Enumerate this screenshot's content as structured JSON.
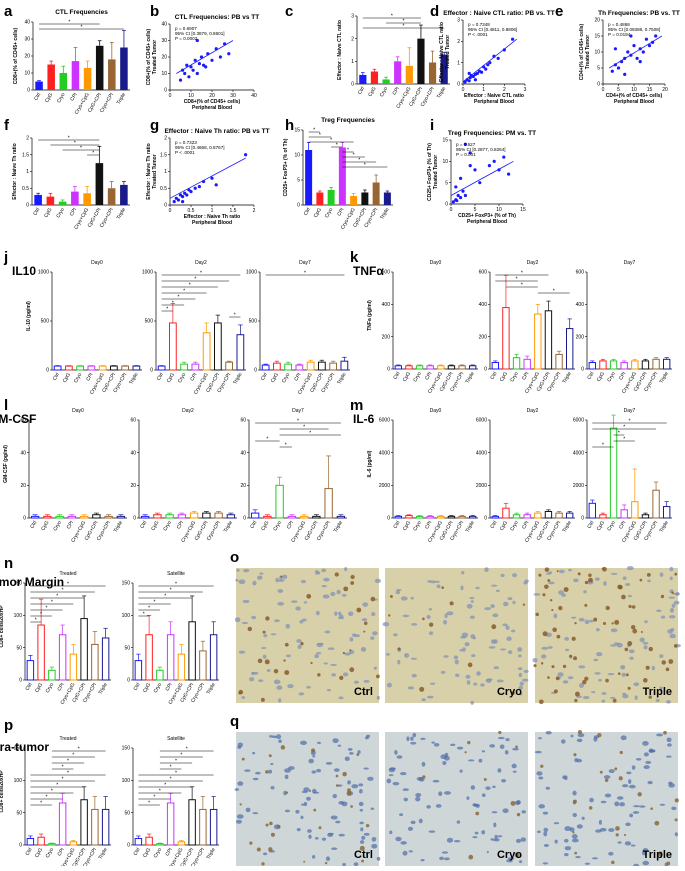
{
  "categories": [
    "Ctrl",
    "CpG",
    "Cryo",
    "CPI",
    "Cryo+CpG",
    "CpG+CPI",
    "Cryo+CPI",
    "Triple"
  ],
  "colors": [
    "#1a1aff",
    "#ff2020",
    "#22cc22",
    "#cc33ff",
    "#ff9900",
    "#111111",
    "#996633",
    "#1a1a8c"
  ],
  "chart_data": [
    {
      "id": "a",
      "type": "bar",
      "title": "CTL Frequencies",
      "ylabel": "CD8+(% of CD45+ cells)",
      "ylim": [
        0,
        40
      ],
      "yticks": [
        0,
        10,
        20,
        30,
        40
      ],
      "values": [
        5,
        15,
        10,
        17,
        13,
        26,
        18,
        25
      ],
      "errors": [
        0.5,
        2,
        4,
        8,
        4,
        3,
        10,
        10
      ]
    },
    {
      "id": "b",
      "type": "scatter",
      "title": "CTL Frequencies: PB vs TT",
      "xlabel": "CD8+(% of CD45+ cells)",
      "ylabel": "CD8+(% of CD45+ cells) Treated Tumor",
      "xlim": [
        0,
        40
      ],
      "ylim": [
        0,
        40
      ],
      "xticks": [
        0,
        10,
        20,
        30,
        40
      ],
      "yticks": [
        0,
        10,
        20,
        30,
        40
      ],
      "stats": [
        "p = 0.6907",
        "95% CI [0.3879, 0.8601]",
        "P = 0.0002"
      ],
      "points": [
        [
          5,
          6
        ],
        [
          6,
          12
        ],
        [
          7,
          10
        ],
        [
          8,
          15
        ],
        [
          9,
          8
        ],
        [
          10,
          14
        ],
        [
          11,
          12
        ],
        [
          12,
          18
        ],
        [
          13,
          10
        ],
        [
          14,
          16
        ],
        [
          15,
          20
        ],
        [
          16,
          15
        ],
        [
          17,
          14
        ],
        [
          18,
          22
        ],
        [
          20,
          18
        ],
        [
          22,
          25
        ],
        [
          24,
          20
        ],
        [
          26,
          28
        ],
        [
          13,
          30
        ],
        [
          28,
          22
        ]
      ],
      "fit": [
        [
          3,
          10
        ],
        [
          30,
          30
        ]
      ]
    },
    {
      "id": "c",
      "type": "bar",
      "title": "",
      "ylabel": "Effector : Naive CTL ratio",
      "ylim": [
        0,
        3
      ],
      "yticks": [
        0,
        1,
        2,
        3
      ],
      "values": [
        0.4,
        0.55,
        0.2,
        1.0,
        0.8,
        2.0,
        0.95,
        1.3
      ],
      "errors": [
        0.1,
        0.1,
        0.1,
        0.2,
        0.8,
        0.6,
        0.5,
        0.1
      ]
    },
    {
      "id": "d",
      "type": "scatter",
      "title": "Effector : Naive CTL ratio: PB vs. TT",
      "xlabel": "Effector : Naive CTL ratio",
      "ylabel": "Effector : Naive CTL ratio Treated Tumor",
      "xlim": [
        0,
        3
      ],
      "ylim": [
        0,
        3
      ],
      "xticks": [
        0,
        1,
        2,
        3
      ],
      "yticks": [
        0,
        1,
        2,
        3
      ],
      "stats": [
        "p = 0.7348",
        "95% CI [0.4811, 0.8806]",
        "P < .0001"
      ],
      "points": [
        [
          0.1,
          0.1
        ],
        [
          0.2,
          0.2
        ],
        [
          0.3,
          0.15
        ],
        [
          0.35,
          0.3
        ],
        [
          0.4,
          0.4
        ],
        [
          0.5,
          0.35
        ],
        [
          0.6,
          0.45
        ],
        [
          0.7,
          0.5
        ],
        [
          0.8,
          0.6
        ],
        [
          0.9,
          0.55
        ],
        [
          1.0,
          0.8
        ],
        [
          1.1,
          0.7
        ],
        [
          1.2,
          0.9
        ],
        [
          1.3,
          1.0
        ],
        [
          1.5,
          1.3
        ],
        [
          1.7,
          1.2
        ],
        [
          2.0,
          1.6
        ],
        [
          2.4,
          2.1
        ],
        [
          0.3,
          0.5
        ],
        [
          0.6,
          0.2
        ]
      ],
      "fit": [
        [
          0,
          0.1
        ],
        [
          2.6,
          2.1
        ]
      ]
    },
    {
      "id": "e",
      "type": "scatter",
      "title": "Th Frequencies: PB vs. TT",
      "xlabel": "CD4+(% of CD45+ cells)",
      "ylabel": "CD4+(% of CD45+ cells) Treated Tumor",
      "xlim": [
        0,
        20
      ],
      "ylim": [
        0,
        20
      ],
      "xticks": [
        0,
        5,
        10,
        15,
        20
      ],
      "yticks": [
        0,
        5,
        10,
        15,
        20
      ],
      "stats": [
        "p = 0.4868",
        "95% CI [0.09386, 0.7508]",
        "P = 0.0194"
      ],
      "points": [
        [
          3,
          4
        ],
        [
          4,
          6
        ],
        [
          5,
          5
        ],
        [
          6,
          7
        ],
        [
          7,
          8
        ],
        [
          7,
          3
        ],
        [
          8,
          10
        ],
        [
          9,
          9
        ],
        [
          10,
          12
        ],
        [
          11,
          8
        ],
        [
          12,
          11
        ],
        [
          12,
          7
        ],
        [
          13,
          10
        ],
        [
          14,
          14
        ],
        [
          15,
          12
        ],
        [
          16,
          13
        ],
        [
          17,
          15
        ],
        [
          4,
          11
        ],
        [
          9,
          15
        ]
      ],
      "fit": [
        [
          2,
          5
        ],
        [
          19,
          15
        ]
      ]
    },
    {
      "id": "f",
      "type": "bar",
      "title": "",
      "ylabel": "Effector : Naive Th ratio",
      "ylim": [
        0,
        2
      ],
      "yticks": [
        0,
        0.5,
        1,
        1.5,
        2
      ],
      "values": [
        0.3,
        0.25,
        0.1,
        0.4,
        0.35,
        1.25,
        0.5,
        0.6
      ],
      "errors": [
        0.05,
        0.1,
        0.05,
        0.15,
        0.2,
        0.5,
        0.2,
        0.1
      ]
    },
    {
      "id": "g",
      "type": "scatter",
      "title": "Effector : Naive Th ratio: PB vs TT",
      "xlabel": "Effector : Naive Th ratio",
      "ylabel": "Effector : Naive Th ratio Treated Tumor",
      "xlim": [
        0,
        2
      ],
      "ylim": [
        0,
        2
      ],
      "xticks": [
        0,
        0.5,
        1,
        1.5,
        2
      ],
      "yticks": [
        0,
        0.5,
        1,
        1.5,
        2
      ],
      "stats": [
        "p = 0.7323",
        "95% CI [0.4668, 0.8767]",
        "P < .0001"
      ],
      "points": [
        [
          0.1,
          0.1
        ],
        [
          0.15,
          0.2
        ],
        [
          0.2,
          0.15
        ],
        [
          0.25,
          0.3
        ],
        [
          0.3,
          0.25
        ],
        [
          0.35,
          0.35
        ],
        [
          0.4,
          0.3
        ],
        [
          0.45,
          0.45
        ],
        [
          0.5,
          0.4
        ],
        [
          0.6,
          0.5
        ],
        [
          0.7,
          0.55
        ],
        [
          0.8,
          0.7
        ],
        [
          1.0,
          0.8
        ],
        [
          1.1,
          0.6
        ],
        [
          1.8,
          1.5
        ],
        [
          0.3,
          0.1
        ]
      ],
      "fit": [
        [
          0,
          0.2
        ],
        [
          1.8,
          1.4
        ]
      ]
    },
    {
      "id": "h",
      "type": "bar",
      "title": "Treg Frequencies",
      "ylabel": "CD25+ FoxP3+ (% of Th)",
      "ylim": [
        0,
        15
      ],
      "yticks": [
        0,
        5,
        10,
        15
      ],
      "values": [
        11,
        2.5,
        3,
        11.5,
        1.8,
        2.5,
        4.5,
        2.5
      ],
      "errors": [
        1.5,
        0.3,
        0.5,
        1,
        0.5,
        0.5,
        1.5,
        0.3
      ]
    },
    {
      "id": "i",
      "type": "scatter",
      "title": "Treg Frequencies: PM vs. TT",
      "xlabel": "CD25+ FoxP3+ (% of Th)",
      "ylabel": "CD25+ FoxP3+ (% of Th) Treated Tumor",
      "xlim": [
        0,
        15
      ],
      "ylim": [
        0,
        15
      ],
      "xticks": [
        0,
        5,
        10,
        15
      ],
      "yticks": [
        0,
        5,
        10,
        15
      ],
      "stats": [
        "p = 0.627",
        "95% CI [0.2877, 0.8264]",
        "P = 0.001"
      ],
      "points": [
        [
          1,
          1
        ],
        [
          1.5,
          2
        ],
        [
          2,
          1.5
        ],
        [
          2.5,
          3
        ],
        [
          3,
          2
        ],
        [
          1,
          4
        ],
        [
          2,
          6
        ],
        [
          4,
          9
        ],
        [
          4,
          12
        ],
        [
          5,
          8
        ],
        [
          6,
          5
        ],
        [
          8,
          9
        ],
        [
          9,
          10
        ],
        [
          10,
          8
        ],
        [
          11,
          11
        ],
        [
          12,
          7
        ],
        [
          3,
          14
        ],
        [
          0.5,
          0.5
        ],
        [
          1.2,
          0.8
        ]
      ],
      "fit": [
        [
          0,
          2
        ],
        [
          13,
          10
        ]
      ]
    },
    {
      "id": "j",
      "type": "bar",
      "big_title": "IL10",
      "ylabel": "IL-10 (pg/ml)",
      "ylim": [
        0,
        1000
      ],
      "yticks": [
        0,
        500,
        1000
      ],
      "groups": [
        "Day0",
        "Day2",
        "Day7"
      ],
      "values": [
        [
          40,
          40,
          40,
          40,
          40,
          40,
          40,
          40
        ],
        [
          40,
          480,
          60,
          60,
          380,
          480,
          80,
          360
        ],
        [
          50,
          70,
          60,
          50,
          80,
          80,
          70,
          90
        ]
      ],
      "errors": [
        [
          5,
          5,
          5,
          5,
          5,
          5,
          5,
          5
        ],
        [
          5,
          200,
          20,
          20,
          100,
          80,
          10,
          100
        ],
        [
          10,
          20,
          20,
          10,
          20,
          20,
          20,
          40
        ]
      ]
    },
    {
      "id": "k",
      "type": "bar",
      "big_title": "TNFα",
      "ylabel": "TNFa (pg/ml)",
      "ylim": [
        0,
        600
      ],
      "yticks": [
        0,
        200,
        400,
        600
      ],
      "groups": [
        "Day0",
        "Day2",
        "Day7"
      ],
      "values": [
        [
          20,
          20,
          20,
          20,
          20,
          20,
          20,
          20
        ],
        [
          40,
          380,
          70,
          60,
          340,
          360,
          90,
          250
        ],
        [
          40,
          50,
          50,
          40,
          50,
          50,
          60,
          60
        ]
      ],
      "errors": [
        [
          5,
          5,
          5,
          5,
          5,
          5,
          5,
          5
        ],
        [
          10,
          200,
          20,
          20,
          60,
          60,
          20,
          60
        ],
        [
          10,
          10,
          10,
          10,
          10,
          10,
          10,
          10
        ]
      ]
    },
    {
      "id": "l",
      "type": "bar",
      "big_title": "GM-CSF",
      "ylabel": "GM-CSF (pg/ml)",
      "ylim": [
        0,
        60
      ],
      "yticks": [
        0,
        20,
        40,
        60
      ],
      "groups": [
        "Day0",
        "Day2",
        "Day7"
      ],
      "values": [
        [
          1,
          1,
          1,
          1,
          1,
          2,
          1,
          1
        ],
        [
          1,
          2,
          2,
          2,
          3,
          3,
          3,
          2
        ],
        [
          3,
          1,
          20,
          1,
          1,
          1,
          18,
          1
        ]
      ],
      "errors": [
        [
          1,
          1,
          1,
          1,
          1,
          1,
          1,
          1
        ],
        [
          1,
          1,
          1,
          1,
          1,
          1,
          1,
          1
        ],
        [
          2,
          1,
          5,
          1,
          1,
          1,
          20,
          1
        ]
      ]
    },
    {
      "id": "m",
      "type": "bar",
      "big_title": "IL-6",
      "ylabel": "IL-6 (pg/ml)",
      "ylim": [
        0,
        6000
      ],
      "yticks": [
        0,
        2000,
        4000,
        6000
      ],
      "groups": [
        "Day0",
        "Day2",
        "Day7"
      ],
      "values": [
        [
          100,
          150,
          100,
          100,
          100,
          100,
          100,
          100
        ],
        [
          100,
          600,
          200,
          200,
          300,
          400,
          300,
          300
        ],
        [
          900,
          200,
          5500,
          500,
          1000,
          200,
          1700,
          700
        ]
      ],
      "errors": [
        [
          50,
          50,
          50,
          50,
          50,
          50,
          50,
          50
        ],
        [
          50,
          300,
          100,
          100,
          100,
          100,
          100,
          100
        ],
        [
          200,
          100,
          800,
          300,
          2000,
          100,
          500,
          300
        ]
      ]
    },
    {
      "id": "n",
      "type": "bar",
      "big_title": "Tumor Margin",
      "ylabel": "CD8+ cells/20xHP",
      "ylim": [
        0,
        150
      ],
      "yticks": [
        0,
        50,
        100,
        150
      ],
      "groups": [
        "Treated",
        "Satellite"
      ],
      "values": [
        [
          30,
          85,
          15,
          70,
          40,
          95,
          55,
          65
        ],
        [
          30,
          70,
          15,
          70,
          40,
          90,
          45,
          70
        ]
      ],
      "errors": [
        [
          8,
          40,
          5,
          15,
          15,
          35,
          20,
          15
        ],
        [
          10,
          30,
          5,
          20,
          15,
          40,
          15,
          20
        ]
      ]
    },
    {
      "id": "p",
      "type": "bar",
      "big_title": "Intra-tumor",
      "ylabel": "CD8+ cells/20xHP",
      "ylim": [
        0,
        150
      ],
      "yticks": [
        0,
        50,
        100,
        150
      ],
      "groups": [
        "Treated",
        "Satellite"
      ],
      "values": [
        [
          10,
          12,
          2,
          65,
          5,
          70,
          55,
          55
        ],
        [
          10,
          12,
          2,
          65,
          5,
          70,
          55,
          55
        ]
      ],
      "errors": [
        [
          4,
          5,
          1,
          15,
          2,
          20,
          20,
          20
        ],
        [
          4,
          5,
          1,
          15,
          2,
          20,
          20,
          20
        ]
      ]
    }
  ],
  "micrographs": {
    "o": {
      "labels": [
        "Ctrl",
        "Cryo",
        "Triple"
      ],
      "bg": "#d7d0a8",
      "cell": "#7d8fb8",
      "stain": "#8a5a2b"
    },
    "q": {
      "labels": [
        "Ctrl",
        "Cryo",
        "Triple"
      ],
      "bg": "#cfd6d8",
      "cell": "#4d6ea8",
      "stain": "#8a6a3b"
    }
  },
  "panel_letters": [
    "a",
    "b",
    "c",
    "d",
    "e",
    "f",
    "g",
    "h",
    "i",
    "j",
    "k",
    "l",
    "m",
    "n",
    "o",
    "p",
    "q"
  ],
  "sig": "*"
}
